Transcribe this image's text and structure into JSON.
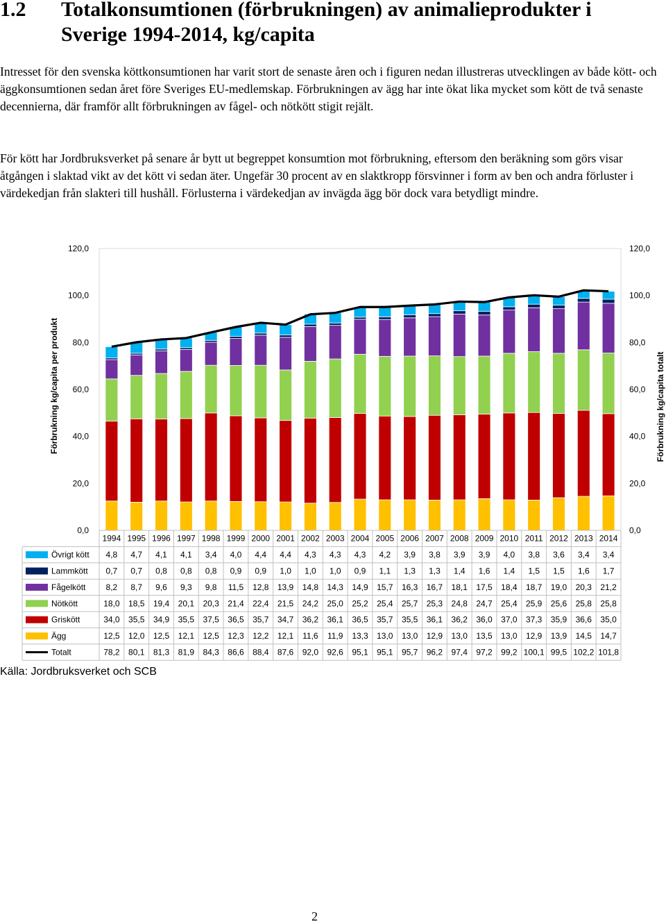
{
  "heading": {
    "number": "1.2",
    "line1": "Totalkonsumtionen (förbrukningen) av animalieprodukter i",
    "line2": "Sverige 1994-2014, kg/capita"
  },
  "paragraphs": [
    "Intresset för den svenska köttkonsumtionen har varit stort de senaste åren och i figuren nedan illustreras utvecklingen av både kött- och äggkonsumtionen sedan året före Sveriges EU-medlemskap. Förbrukningen av ägg har inte ökat lika mycket som kött de två senaste decennierna, där framför allt förbrukningen av fågel- och nötkött stigit rejält.",
    "För kött har Jordbruksverket på senare år bytt ut begreppet konsumtion mot förbrukning, eftersom den beräkning som görs visar åtgången i slaktad vikt av det kött vi sedan äter. Ungefär 30 procent av en slaktkropp försvinner i form av ben och andra förluster i värdekedjan från slakteri till hushåll. Förlusterna i värdekedjan av invägda ägg bör dock vara betydligt mindre."
  ],
  "source": "Källa: Jordbruksverket och SCB",
  "page_number": "2",
  "chart_data": {
    "type": "bar",
    "stacked": true,
    "ylabel_left": "Förbrukning kg/capita per produkt",
    "ylabel_right": "Förbrukning kg/capita totalt",
    "ylim": [
      0,
      120
    ],
    "yticks": [
      "0,0",
      "20,0",
      "40,0",
      "60,0",
      "80,0",
      "100,0",
      "120,0"
    ],
    "categories": [
      "1994",
      "1995",
      "1996",
      "1997",
      "1998",
      "1999",
      "2000",
      "2001",
      "2002",
      "2003",
      "2004",
      "2005",
      "2006",
      "2007",
      "2008",
      "2009",
      "2010",
      "2011",
      "2012",
      "2013",
      "2014"
    ],
    "series": [
      {
        "name": "Övrigt kött",
        "color": "#00b0f0",
        "values": [
          4.8,
          4.7,
          4.1,
          4.1,
          3.4,
          4.0,
          4.4,
          4.4,
          4.3,
          4.3,
          4.3,
          4.2,
          3.9,
          3.8,
          3.9,
          3.9,
          4.0,
          3.8,
          3.6,
          3.4,
          3.4
        ],
        "labels": [
          "4,8",
          "4,7",
          "4,1",
          "4,1",
          "3,4",
          "4,0",
          "4,4",
          "4,4",
          "4,3",
          "4,3",
          "4,3",
          "4,2",
          "3,9",
          "3,8",
          "3,9",
          "3,9",
          "4,0",
          "3,8",
          "3,6",
          "3,4",
          "3,4"
        ]
      },
      {
        "name": "Lammkött",
        "color": "#002060",
        "values": [
          0.7,
          0.7,
          0.8,
          0.8,
          0.8,
          0.9,
          0.9,
          1.0,
          1.0,
          1.0,
          0.9,
          1.1,
          1.3,
          1.3,
          1.4,
          1.6,
          1.4,
          1.5,
          1.5,
          1.6,
          1.7
        ],
        "labels": [
          "0,7",
          "0,7",
          "0,8",
          "0,8",
          "0,8",
          "0,9",
          "0,9",
          "1,0",
          "1,0",
          "1,0",
          "0,9",
          "1,1",
          "1,3",
          "1,3",
          "1,4",
          "1,6",
          "1,4",
          "1,5",
          "1,5",
          "1,6",
          "1,7"
        ]
      },
      {
        "name": "Fågelkött",
        "color": "#7030a0",
        "values": [
          8.2,
          8.7,
          9.6,
          9.3,
          9.8,
          11.5,
          12.8,
          13.9,
          14.8,
          14.3,
          14.9,
          15.7,
          16.3,
          16.7,
          18.1,
          17.5,
          18.4,
          18.7,
          19.0,
          20.3,
          21.2
        ],
        "labels": [
          "8,2",
          "8,7",
          "9,6",
          "9,3",
          "9,8",
          "11,5",
          "12,8",
          "13,9",
          "14,8",
          "14,3",
          "14,9",
          "15,7",
          "16,3",
          "16,7",
          "18,1",
          "17,5",
          "18,4",
          "18,7",
          "19,0",
          "20,3",
          "21,2"
        ]
      },
      {
        "name": "Nötkött",
        "color": "#92d050",
        "values": [
          18.0,
          18.5,
          19.4,
          20.1,
          20.3,
          21.4,
          22.4,
          21.5,
          24.2,
          25.0,
          25.2,
          25.4,
          25.7,
          25.3,
          24.8,
          24.7,
          25.4,
          25.9,
          25.6,
          25.8,
          25.8
        ],
        "labels": [
          "18,0",
          "18,5",
          "19,4",
          "20,1",
          "20,3",
          "21,4",
          "22,4",
          "21,5",
          "24,2",
          "25,0",
          "25,2",
          "25,4",
          "25,7",
          "25,3",
          "24,8",
          "24,7",
          "25,4",
          "25,9",
          "25,6",
          "25,8",
          "25,8"
        ]
      },
      {
        "name": "Griskött",
        "color": "#c00000",
        "values": [
          34.0,
          35.5,
          34.9,
          35.5,
          37.5,
          36.5,
          35.7,
          34.7,
          36.2,
          36.1,
          36.5,
          35.7,
          35.5,
          36.1,
          36.2,
          36.0,
          37.0,
          37.3,
          35.9,
          36.6,
          35.0
        ],
        "labels": [
          "34,0",
          "35,5",
          "34,9",
          "35,5",
          "37,5",
          "36,5",
          "35,7",
          "34,7",
          "36,2",
          "36,1",
          "36,5",
          "35,7",
          "35,5",
          "36,1",
          "36,2",
          "36,0",
          "37,0",
          "37,3",
          "35,9",
          "36,6",
          "35,0"
        ]
      },
      {
        "name": "Ägg",
        "color": "#ffc000",
        "values": [
          12.5,
          12.0,
          12.5,
          12.1,
          12.5,
          12.3,
          12.2,
          12.1,
          11.6,
          11.9,
          13.3,
          13.0,
          13.0,
          12.9,
          13.0,
          13.5,
          13.0,
          12.9,
          13.9,
          14.5,
          14.7
        ],
        "labels": [
          "12,5",
          "12,0",
          "12,5",
          "12,1",
          "12,5",
          "12,3",
          "12,2",
          "12,1",
          "11,6",
          "11,9",
          "13,3",
          "13,0",
          "13,0",
          "12,9",
          "13,0",
          "13,5",
          "13,0",
          "12,9",
          "13,9",
          "14,5",
          "14,7"
        ]
      }
    ],
    "total": {
      "name": "Totalt",
      "color": "#000000",
      "type": "line",
      "values": [
        78.2,
        80.1,
        81.3,
        81.9,
        84.3,
        86.6,
        88.4,
        87.6,
        92.0,
        92.6,
        95.1,
        95.1,
        95.7,
        96.2,
        97.4,
        97.2,
        99.2,
        100.1,
        99.5,
        102.2,
        101.8
      ],
      "labels": [
        "78,2",
        "80,1",
        "81,3",
        "81,9",
        "84,3",
        "86,6",
        "88,4",
        "87,6",
        "92,0",
        "92,6",
        "95,1",
        "95,1",
        "95,7",
        "96,2",
        "97,4",
        "97,2",
        "99,2",
        "100,1",
        "99,5",
        "102,2",
        "101,8"
      ]
    },
    "data_table": true
  }
}
